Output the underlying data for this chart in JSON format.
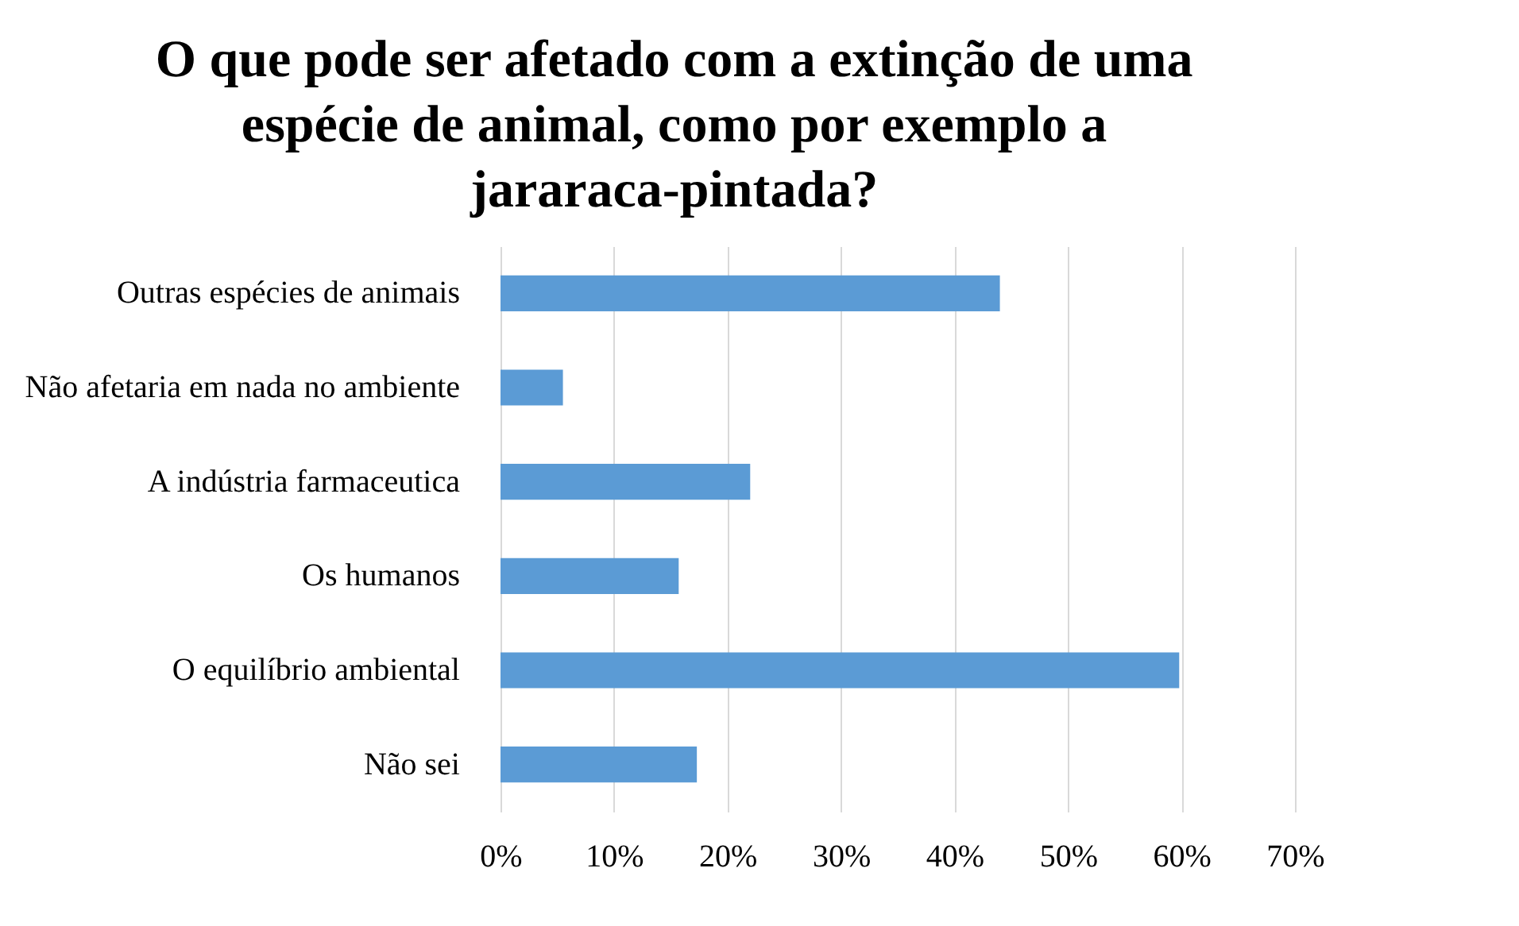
{
  "chart_data": {
    "type": "bar",
    "orientation": "horizontal",
    "title": [
      "O que pode ser afetado com a extinção de uma",
      "espécie de animal, como por exemplo a",
      "jararaca-pintada?"
    ],
    "categories": [
      "Outras espécies de animais",
      "Não afetaria em nada no ambiente",
      "A indústria farmaceutica",
      "Os humanos",
      "O equilíbrio ambiental",
      "Não sei"
    ],
    "values": [
      44.0,
      5.5,
      22.0,
      15.7,
      59.8,
      17.3
    ],
    "color": "#5b9bd5",
    "xlim": [
      0,
      70
    ],
    "xticks": [
      {
        "value": 0,
        "label": "0%"
      },
      {
        "value": 10,
        "label": "10%"
      },
      {
        "value": 20,
        "label": "20%"
      },
      {
        "value": 30,
        "label": "30%"
      },
      {
        "value": 40,
        "label": "40%"
      },
      {
        "value": 50,
        "label": "50%"
      },
      {
        "value": 60,
        "label": "60%"
      },
      {
        "value": 70,
        "label": "70%"
      }
    ],
    "grid": "x"
  }
}
